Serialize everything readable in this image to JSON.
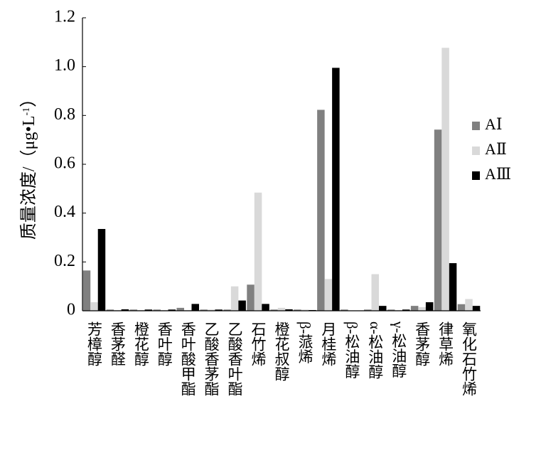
{
  "chart_data": {
    "type": "bar",
    "y_label_parts": [
      "质量浓度/（μg•L",
      "-1",
      "）"
    ],
    "categories": [
      "芳樟醇",
      "香茅醛",
      "橙花醇",
      "香叶醇",
      "香叶酸甲酯",
      "乙酸香茅酯",
      "乙酸香叶酯",
      "石竹烯",
      "橙花叔醇",
      "β-蒎烯",
      "月桂烯",
      "β-松油醇",
      "α-松油醇",
      "γ-松油醇",
      "香茅醇",
      "律草烯",
      "氧化石竹烯"
    ],
    "series": [
      {
        "name": "AⅠ",
        "color": "#808080",
        "values": [
          0.165,
          0.005,
          0.005,
          0.005,
          0.012,
          0.005,
          0.005,
          0.107,
          0.005,
          0.005,
          0.823,
          0.005,
          0.005,
          0.005,
          0.02,
          0.742,
          0.027
        ]
      },
      {
        "name": "AⅡ",
        "color": "#d9d9d9",
        "values": [
          0.035,
          0.003,
          0.003,
          0.003,
          0.003,
          0.005,
          0.1,
          0.484,
          0.012,
          0.005,
          0.13,
          0,
          0.15,
          0.003,
          0.015,
          1.077,
          0.048
        ]
      },
      {
        "name": "AⅢ",
        "color": "#000000",
        "values": [
          0.335,
          0.006,
          0.005,
          0.005,
          0.028,
          0.005,
          0.042,
          0.028,
          0.006,
          0.003,
          0.995,
          0,
          0.02,
          0.005,
          0.035,
          0.195,
          0.02
        ]
      }
    ],
    "ylim": [
      0,
      1.2
    ],
    "yticks": [
      0,
      0.2,
      0.4,
      0.6,
      0.8,
      {
        "value": 1,
        "label": "1.0"
      },
      1.2
    ],
    "grid": false,
    "legend": "right"
  }
}
